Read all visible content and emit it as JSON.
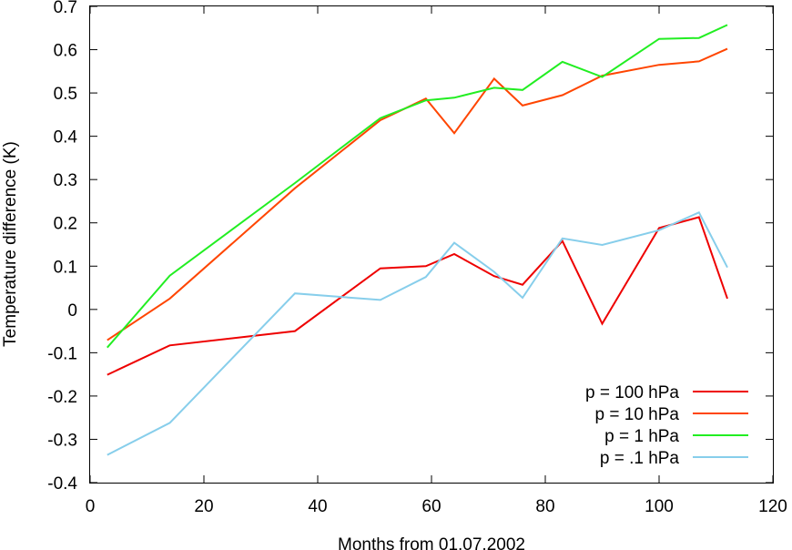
{
  "chart_data": {
    "type": "line",
    "title": "",
    "xlabel": "Months from 01.07.2002",
    "ylabel": "Temperature difference (K)",
    "xlim": [
      0,
      120
    ],
    "ylim": [
      -0.4,
      0.7
    ],
    "xticks": [
      0,
      20,
      40,
      60,
      80,
      100,
      120
    ],
    "xtick_labels": [
      "0",
      "20",
      "40",
      "60",
      "80",
      "100",
      "120"
    ],
    "yticks": [
      -0.4,
      -0.3,
      -0.2,
      -0.1,
      0,
      0.1,
      0.2,
      0.3,
      0.4,
      0.5,
      0.6,
      0.7
    ],
    "ytick_labels": [
      "-0.4",
      "-0.3",
      "-0.2",
      "-0.1",
      "0",
      "0.1",
      "0.2",
      "0.3",
      "0.4",
      "0.5",
      "0.6",
      "0.7"
    ],
    "grid": false,
    "legend_position": "bottom-right",
    "series": [
      {
        "name": "p = 100 hPa",
        "color": "#ee0000",
        "x": [
          3,
          14,
          36,
          51,
          59,
          64,
          71,
          76,
          83,
          90,
          100,
          107,
          112
        ],
        "y": [
          -0.151,
          -0.083,
          -0.05,
          0.095,
          0.1,
          0.128,
          0.077,
          0.057,
          0.158,
          -0.033,
          0.188,
          0.213,
          0.025
        ]
      },
      {
        "name": "p = 10 hPa",
        "color": "#ff4500",
        "x": [
          3,
          14,
          36,
          51,
          59,
          64,
          71,
          76,
          83,
          90,
          100,
          107,
          112
        ],
        "y": [
          -0.071,
          0.025,
          0.28,
          0.437,
          0.487,
          0.407,
          0.533,
          0.471,
          0.495,
          0.54,
          0.565,
          0.573,
          0.602
        ]
      },
      {
        "name": "p = 1 hPa",
        "color": "#22ee22",
        "x": [
          3,
          14,
          36,
          51,
          59,
          64,
          71,
          76,
          83,
          90,
          100,
          107,
          112
        ],
        "y": [
          -0.088,
          0.078,
          0.292,
          0.442,
          0.483,
          0.489,
          0.512,
          0.507,
          0.572,
          0.537,
          0.625,
          0.627,
          0.657
        ]
      },
      {
        "name": "p = .1 hPa",
        "color": "#87ceeb",
        "x": [
          3,
          14,
          36,
          51,
          59,
          64,
          71,
          76,
          83,
          90,
          100,
          107,
          112
        ],
        "y": [
          -0.336,
          -0.262,
          0.037,
          0.022,
          0.075,
          0.154,
          0.087,
          0.027,
          0.164,
          0.149,
          0.183,
          0.224,
          0.097
        ]
      }
    ]
  }
}
